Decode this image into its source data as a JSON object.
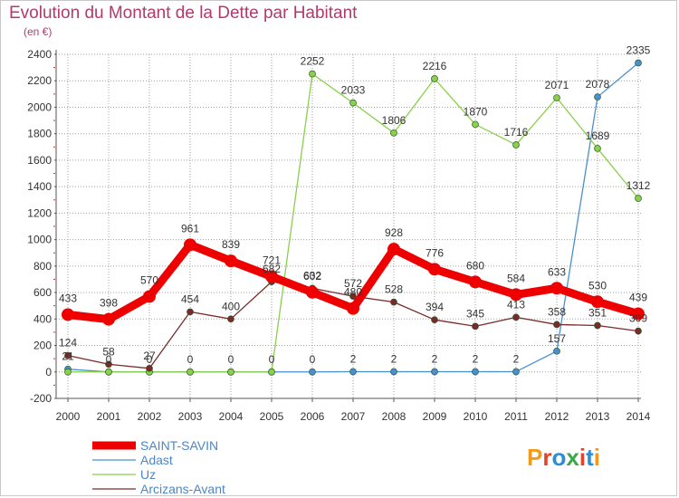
{
  "title": "Evolution du Montant de la Dette par Habitant",
  "unit_label": "(en €)",
  "brand": {
    "text": "Proxiti",
    "colors": [
      "#f39a1d",
      "#e2432a",
      "#2a8dd6",
      "#3aa845",
      "#e2432a",
      "#2a8dd6",
      "#f39a1d"
    ]
  },
  "colors": {
    "title": "#b23a6b",
    "grid": "#9a9a9a",
    "axis": "#555555"
  },
  "chart_data": {
    "type": "line",
    "title": "Evolution du Montant de la Dette par Habitant",
    "ylabel": "(en €)",
    "xlabel": "",
    "x": [
      "2000",
      "2001",
      "2002",
      "2003",
      "2004",
      "2005",
      "2006",
      "2007",
      "2008",
      "2009",
      "2010",
      "2011",
      "2012",
      "2013",
      "2014"
    ],
    "ylim": [
      -200,
      2400
    ],
    "yticks": [
      -200,
      0,
      200,
      400,
      600,
      800,
      1000,
      1200,
      1400,
      1600,
      1800,
      2000,
      2200,
      2400
    ],
    "grid": true,
    "legend_position": "bottom-left",
    "series": [
      {
        "name": "SAINT-SAVIN",
        "color": "#ee0000",
        "values": [
          433,
          398,
          570,
          961,
          839,
          721,
          602,
          480,
          928,
          776,
          680,
          584,
          633,
          530,
          439
        ],
        "labels": [
          "433",
          "398",
          "570",
          "961",
          "839",
          "721",
          "602",
          "480",
          "928",
          "776",
          "680",
          "584",
          "633",
          "530",
          "439"
        ]
      },
      {
        "name": "Adast",
        "color": "#4a8fcf",
        "values": [
          21,
          0,
          0,
          0,
          0,
          0,
          0,
          2,
          2,
          2,
          2,
          2,
          157,
          2078,
          2335
        ],
        "labels": [
          "21",
          "0",
          "0",
          "0",
          "0",
          "0",
          "0",
          "2",
          "2",
          "2",
          "2",
          "2",
          "157",
          "2078",
          "2335"
        ]
      },
      {
        "name": "Uz",
        "color": "#8ad04a",
        "values": [
          0,
          0,
          0,
          0,
          0,
          0,
          2252,
          2033,
          1806,
          2216,
          1870,
          1716,
          2071,
          1689,
          1312
        ],
        "labels": [
          "",
          "",
          "",
          "",
          "",
          "",
          "2252",
          "2033",
          "1806",
          "2216",
          "1870",
          "1716",
          "2071",
          "1689",
          "1312"
        ]
      },
      {
        "name": "Arcizans-Avant",
        "color": "#7a2a2a",
        "values": [
          124,
          58,
          27,
          454,
          400,
          682,
          632,
          572,
          528,
          394,
          345,
          413,
          358,
          351,
          309
        ],
        "labels": [
          "124",
          "58",
          "27",
          "454",
          "400",
          "682",
          "632",
          "572",
          "528",
          "394",
          "345",
          "413",
          "358",
          "351",
          "309"
        ]
      }
    ]
  }
}
